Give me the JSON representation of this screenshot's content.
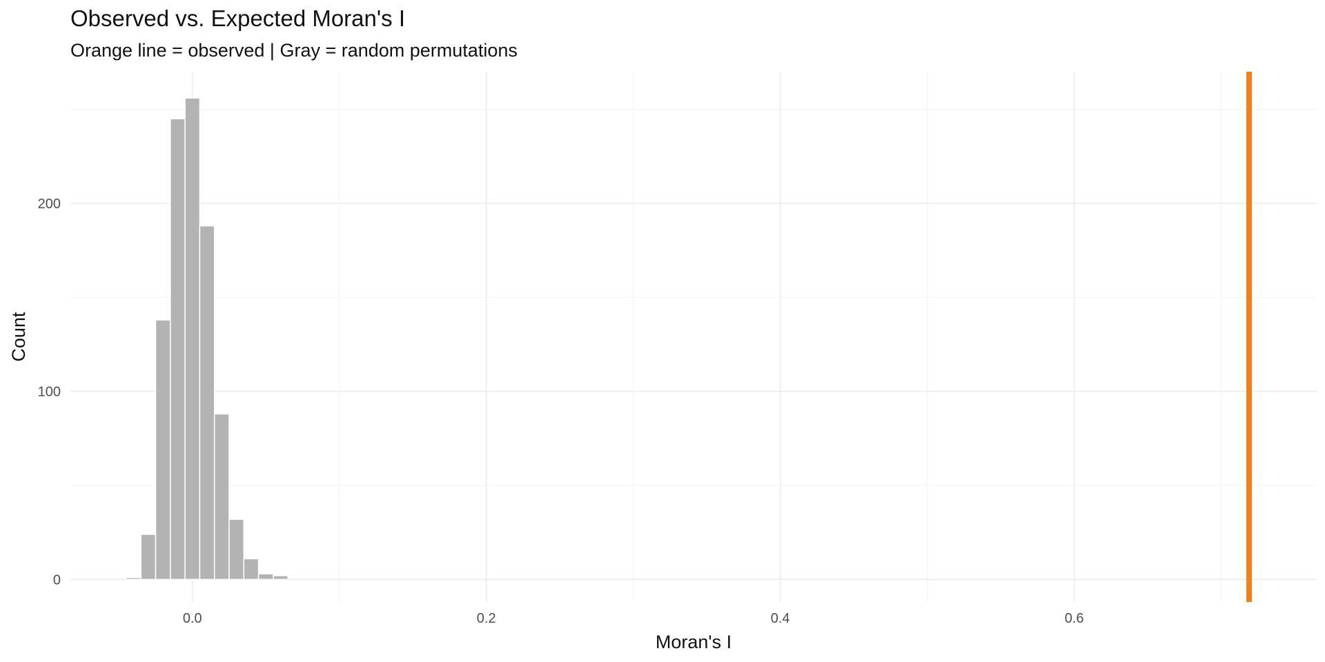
{
  "chart_data": {
    "type": "bar",
    "title": "Observed vs. Expected Moran's I",
    "subtitle": "Orange line = observed | Gray = random permutations",
    "xlabel": "Moran's I",
    "ylabel": "Count",
    "xlim": [
      -0.083,
      0.765
    ],
    "ylim": [
      -12,
      270
    ],
    "x_major_ticks": [
      0.0,
      0.2,
      0.4,
      0.6
    ],
    "x_minor_ticks": [
      0.1,
      0.3,
      0.5,
      0.7
    ],
    "x_tick_labels": [
      "0.0",
      "0.2",
      "0.4",
      "0.6"
    ],
    "y_major_ticks": [
      0,
      100,
      200
    ],
    "y_minor_ticks": [
      50,
      150,
      250
    ],
    "y_tick_labels": [
      "0",
      "100",
      "200"
    ],
    "grid": true,
    "legend": "none",
    "bin_width": 0.01,
    "bins": [
      {
        "x_start": -0.045,
        "x_end": -0.035,
        "count": 1
      },
      {
        "x_start": -0.035,
        "x_end": -0.025,
        "count": 24
      },
      {
        "x_start": -0.025,
        "x_end": -0.015,
        "count": 138
      },
      {
        "x_start": -0.015,
        "x_end": -0.005,
        "count": 245
      },
      {
        "x_start": -0.005,
        "x_end": 0.005,
        "count": 256
      },
      {
        "x_start": 0.005,
        "x_end": 0.015,
        "count": 188
      },
      {
        "x_start": 0.015,
        "x_end": 0.025,
        "count": 88
      },
      {
        "x_start": 0.025,
        "x_end": 0.035,
        "count": 32
      },
      {
        "x_start": 0.035,
        "x_end": 0.045,
        "count": 11
      },
      {
        "x_start": 0.045,
        "x_end": 0.055,
        "count": 3
      },
      {
        "x_start": 0.055,
        "x_end": 0.065,
        "count": 2
      }
    ],
    "observed_value": 0.719,
    "colors": {
      "bar_fill": "#b3b3b3",
      "bar_stroke": "#ffffff",
      "observed_line": "#f57f17",
      "grid_major": "#ebebeb",
      "grid_minor": "#f4f4f4",
      "text": "#111111",
      "tick_text": "#4d4d4d"
    }
  }
}
